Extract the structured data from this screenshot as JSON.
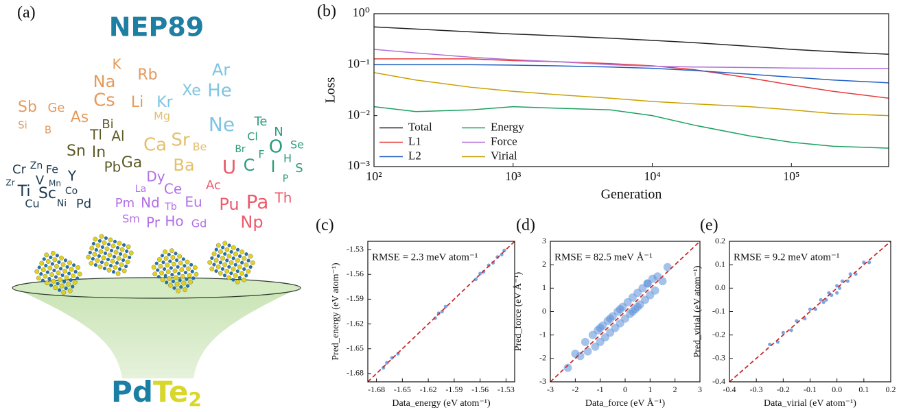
{
  "figure": {
    "panel_a": {
      "label": "(a)",
      "title": "NEP89",
      "element_groups": [
        {
          "color": "#e59a5c",
          "symbols": [
            "K",
            "Na",
            "Rb",
            "Cs",
            "Li",
            "Sb",
            "Ge",
            "As",
            "Si",
            "B"
          ]
        },
        {
          "color": "#5c5a26",
          "symbols": [
            "Bi",
            "Tl",
            "Al",
            "Sn",
            "In",
            "Pb",
            "Ga"
          ]
        },
        {
          "color": "#e3c06e",
          "symbols": [
            "Mg",
            "Ca",
            "Sr",
            "Be",
            "Ba"
          ]
        },
        {
          "color": "#7ec4e3",
          "symbols": [
            "Ar",
            "Xe",
            "He",
            "Kr",
            "Ne"
          ]
        },
        {
          "color": "#2a9c7c",
          "symbols": [
            "Te",
            "N",
            "Cl",
            "Se",
            "Br",
            "O",
            "F",
            "H",
            "C",
            "I",
            "S",
            "P"
          ]
        },
        {
          "color": "#b26ee6",
          "symbols": [
            "Dy",
            "La",
            "Ce",
            "Pm",
            "Nd",
            "Tb",
            "Eu",
            "Sm",
            "Pr",
            "Ho",
            "Gd"
          ]
        },
        {
          "color": "#ec5b6b",
          "symbols": [
            "U",
            "Ac",
            "Pu",
            "Pa",
            "Th",
            "Np"
          ]
        },
        {
          "color": "#1d3b50",
          "symbols": [
            "Cr",
            "Zn",
            "Fe",
            "Y",
            "V",
            "Mn",
            "Zr",
            "Ti",
            "Sc",
            "Co",
            "Cu",
            "Ni",
            "Pd"
          ]
        }
      ],
      "formula": {
        "parts": [
          "Pd",
          "Te"
        ],
        "subscript": "2"
      }
    }
  },
  "chart_data": [
    {
      "type": "line",
      "label": "(b)",
      "xlabel": "Generation",
      "ylabel": "Loss",
      "xscale": "log",
      "yscale": "log",
      "xlim": [
        100,
        500000
      ],
      "ylim": [
        0.001,
        1
      ],
      "xticks": [
        {
          "value": 100,
          "label": "10²"
        },
        {
          "value": 1000,
          "label": "10³"
        },
        {
          "value": 10000,
          "label": "10⁴"
        },
        {
          "value": 100000,
          "label": "10⁵"
        }
      ],
      "yticks": [
        {
          "value": 0.001,
          "label": "10⁻³"
        },
        {
          "value": 0.01,
          "label": "10⁻²"
        },
        {
          "value": 0.1,
          "label": "10⁻¹"
        },
        {
          "value": 1,
          "label": "10⁰"
        }
      ],
      "legend": "lower left",
      "legend_columns": 2,
      "x": [
        100,
        200,
        500,
        1000,
        2000,
        5000,
        10000,
        20000,
        50000,
        100000,
        200000,
        500000
      ],
      "series": [
        {
          "name": "Total",
          "color": "#222222",
          "values": [
            0.55,
            0.5,
            0.44,
            0.4,
            0.37,
            0.33,
            0.3,
            0.27,
            0.23,
            0.2,
            0.18,
            0.16
          ]
        },
        {
          "name": "L1",
          "color": "#e8393a",
          "values": [
            0.13,
            0.13,
            0.13,
            0.12,
            0.115,
            0.105,
            0.095,
            0.08,
            0.055,
            0.04,
            0.03,
            0.022
          ]
        },
        {
          "name": "L2",
          "color": "#1f5fbf",
          "values": [
            0.1,
            0.1,
            0.1,
            0.098,
            0.095,
            0.09,
            0.085,
            0.077,
            0.065,
            0.057,
            0.05,
            0.044
          ]
        },
        {
          "name": "Energy",
          "color": "#1aa060",
          "values": [
            0.015,
            0.012,
            0.013,
            0.015,
            0.014,
            0.013,
            0.01,
            0.0065,
            0.004,
            0.003,
            0.0025,
            0.0023
          ]
        },
        {
          "name": "Force",
          "color": "#b070d8",
          "values": [
            0.2,
            0.17,
            0.14,
            0.125,
            0.115,
            0.1,
            0.093,
            0.09,
            0.088,
            0.086,
            0.085,
            0.084
          ]
        },
        {
          "name": "Virial",
          "color": "#c9a000",
          "values": [
            0.07,
            0.05,
            0.036,
            0.03,
            0.026,
            0.022,
            0.019,
            0.017,
            0.015,
            0.013,
            0.011,
            0.01
          ]
        }
      ]
    },
    {
      "type": "scatter",
      "label": "(c)",
      "xlabel": "Data_energy (eV atom⁻¹)",
      "ylabel": "Pred_energy (eV atom⁻¹)",
      "annotation": "RMSE = 2.3 meV atom⁻¹",
      "color": "#5b8fd9",
      "identity_line_color": "#c62828",
      "xlim": [
        -1.69,
        -1.52
      ],
      "ylim": [
        -1.69,
        -1.52
      ],
      "xticks": [
        -1.68,
        -1.65,
        -1.62,
        -1.59,
        -1.56,
        -1.53
      ],
      "yticks": [
        -1.68,
        -1.65,
        -1.62,
        -1.59,
        -1.56,
        -1.53
      ],
      "x": [
        -1.672,
        -1.668,
        -1.662,
        -1.655,
        -1.612,
        -1.608,
        -1.604,
        -1.6,
        -1.565,
        -1.56,
        -1.556,
        -1.55,
        -1.545,
        -1.54,
        -1.535,
        -1.532
      ],
      "values": [
        -1.673,
        -1.667,
        -1.661,
        -1.656,
        -1.613,
        -1.607,
        -1.605,
        -1.599,
        -1.566,
        -1.559,
        -1.557,
        -1.549,
        -1.546,
        -1.539,
        -1.536,
        -1.531
      ]
    },
    {
      "type": "scatter",
      "label": "(d)",
      "xlabel": "Data_force (eV Å⁻¹)",
      "ylabel": "Pred_force (eV Å⁻¹)",
      "annotation": "RMSE = 82.5 meV Å⁻¹",
      "color": "#5b8fd9",
      "identity_line_color": "#c62828",
      "xlim": [
        -3,
        3
      ],
      "ylim": [
        -3,
        3
      ],
      "xticks": [
        -3,
        -2,
        -1,
        0,
        1,
        2,
        3
      ],
      "yticks": [
        -3,
        -2,
        -1,
        0,
        1,
        2,
        3
      ],
      "x": [
        -2.3,
        -2.0,
        -1.8,
        -1.6,
        -1.5,
        -1.3,
        -1.2,
        -1.1,
        -1.0,
        -0.9,
        -0.8,
        -0.7,
        -0.6,
        -0.5,
        -0.4,
        -0.3,
        -0.2,
        -0.1,
        0,
        0.1,
        0.2,
        0.3,
        0.4,
        0.5,
        0.6,
        0.7,
        0.8,
        0.9,
        1.0,
        1.1,
        1.2,
        1.3,
        1.5,
        1.7,
        -0.6,
        0.3,
        -1.0,
        0.9,
        -0.2,
        0.5
      ],
      "values": [
        -2.4,
        -1.8,
        -1.9,
        -1.3,
        -1.7,
        -1.0,
        -1.5,
        -0.8,
        -1.3,
        -0.6,
        -1.1,
        -0.4,
        -0.9,
        -0.2,
        -0.7,
        0.0,
        -0.5,
        0.2,
        -0.3,
        0.4,
        -0.1,
        0.6,
        0.1,
        0.8,
        0.3,
        1.0,
        0.5,
        1.2,
        0.7,
        1.4,
        0.9,
        1.5,
        1.3,
        1.9,
        -0.3,
        0.0,
        -0.7,
        1.2,
        0.1,
        0.2
      ]
    },
    {
      "type": "scatter",
      "label": "(e)",
      "xlabel": "Data_virial (eV atom⁻¹)",
      "ylabel": "Pred_virial (eV atom⁻¹)",
      "annotation": "RMSE = 9.2 meV atom⁻¹",
      "color": "#5b8fd9",
      "identity_line_color": "#c62828",
      "xlim": [
        -0.4,
        0.2
      ],
      "ylim": [
        -0.4,
        0.2
      ],
      "xticks": [
        -0.4,
        -0.3,
        -0.2,
        -0.1,
        {
          "value": 0,
          "label": "0.0"
        },
        0.1,
        0.2
      ],
      "yticks": [
        -0.4,
        -0.3,
        -0.2,
        -0.1,
        {
          "value": 0,
          "label": "0.0"
        },
        0.1,
        0.2
      ],
      "x": [
        -0.25,
        -0.22,
        -0.2,
        -0.17,
        -0.15,
        -0.12,
        -0.1,
        -0.08,
        -0.06,
        -0.05,
        -0.03,
        -0.02,
        0,
        0.01,
        0.02,
        0.04,
        0.05,
        0.07,
        0.1,
        0.12,
        -0.04,
        0.0
      ],
      "values": [
        -0.24,
        -0.23,
        -0.19,
        -0.18,
        -0.14,
        -0.13,
        -0.09,
        -0.09,
        -0.05,
        -0.06,
        -0.02,
        -0.03,
        0.01,
        0.0,
        0.03,
        0.03,
        0.06,
        0.06,
        0.11,
        0.11,
        -0.05,
        -0.02
      ]
    }
  ]
}
